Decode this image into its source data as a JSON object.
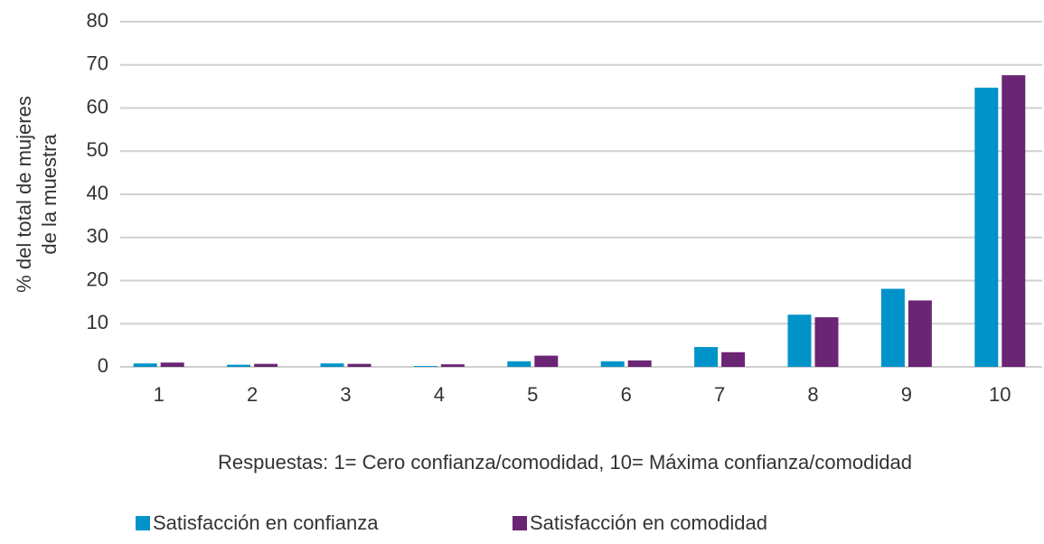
{
  "chart_data": {
    "type": "bar",
    "y_label": [
      "% del total de mujeres",
      "de la muestra"
    ],
    "x_label": "Respuestas: 1= Cero confianza/comodidad, 10= Máxima confianza/comodidad",
    "categories": [
      "1",
      "2",
      "3",
      "4",
      "5",
      "6",
      "7",
      "8",
      "9",
      "10"
    ],
    "series": [
      {
        "name": "Satisfacción en confianza",
        "color": "#0093c9",
        "values": [
          0.8,
          0.5,
          0.8,
          0.2,
          1.3,
          1.3,
          4.6,
          12.1,
          18.1,
          64.7
        ]
      },
      {
        "name": "Satisfacción en comodidad",
        "color": "#6b2575",
        "values": [
          1.0,
          0.7,
          0.7,
          0.6,
          2.6,
          1.5,
          3.4,
          11.5,
          15.4,
          67.6
        ]
      }
    ],
    "ylim": [
      0,
      80
    ],
    "yticks": [
      0,
      10,
      20,
      30,
      40,
      50,
      60,
      70,
      80
    ],
    "grid": true,
    "legend": "bottom"
  }
}
